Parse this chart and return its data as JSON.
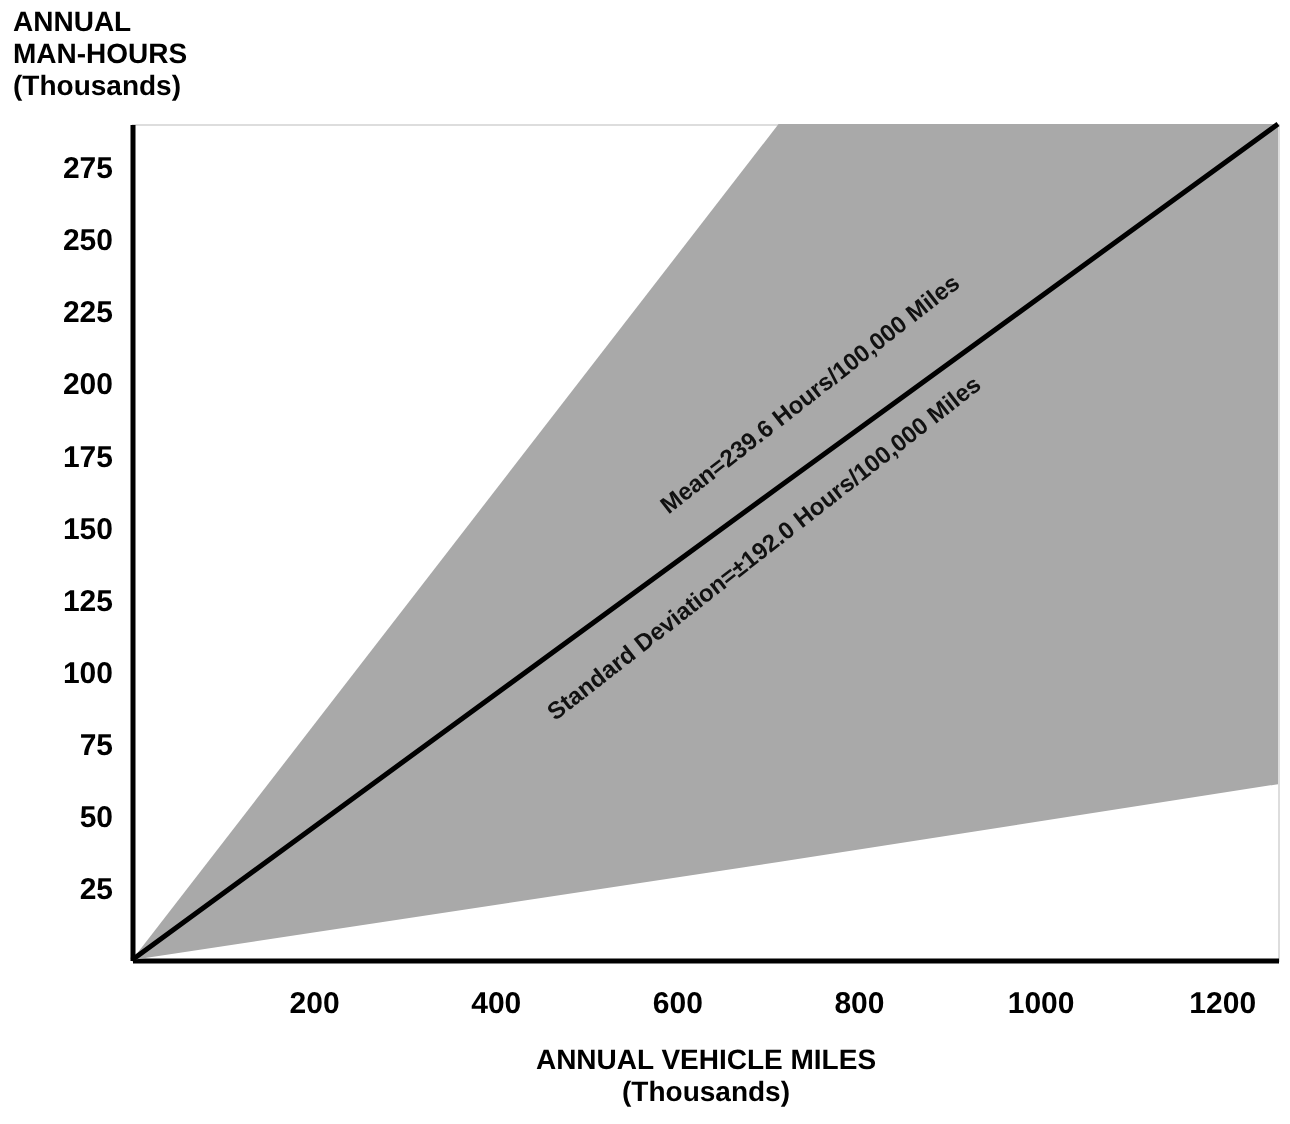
{
  "chart_data": {
    "type": "line",
    "xlabel": "ANNUAL VEHICLE MILES\n(Thousands)",
    "ylabel": "ANNUAL\nMAN-HOURS\n(Thousands)",
    "series": [
      {
        "color": "#000000",
        "x": [
          0,
          712,
          1262
        ],
        "values": [
          0,
          164,
          290
        ],
        "lower": [
          0,
          34,
          61
        ],
        "upper": [
          0,
          290,
          290
        ]
      }
    ],
    "annotations": [
      "Mean=239.6 Hours/100,000 Miles",
      "Standard Deviation=±192.0 Hours/100,000 Miles"
    ],
    "xlim": [
      0,
      1262
    ],
    "ylim": [
      0,
      290
    ],
    "xticks": [
      200,
      400,
      600,
      800,
      1000,
      1200
    ],
    "yticks": [
      25,
      50,
      75,
      100,
      125,
      150,
      175,
      200,
      225,
      250,
      275
    ],
    "grid": false
  }
}
